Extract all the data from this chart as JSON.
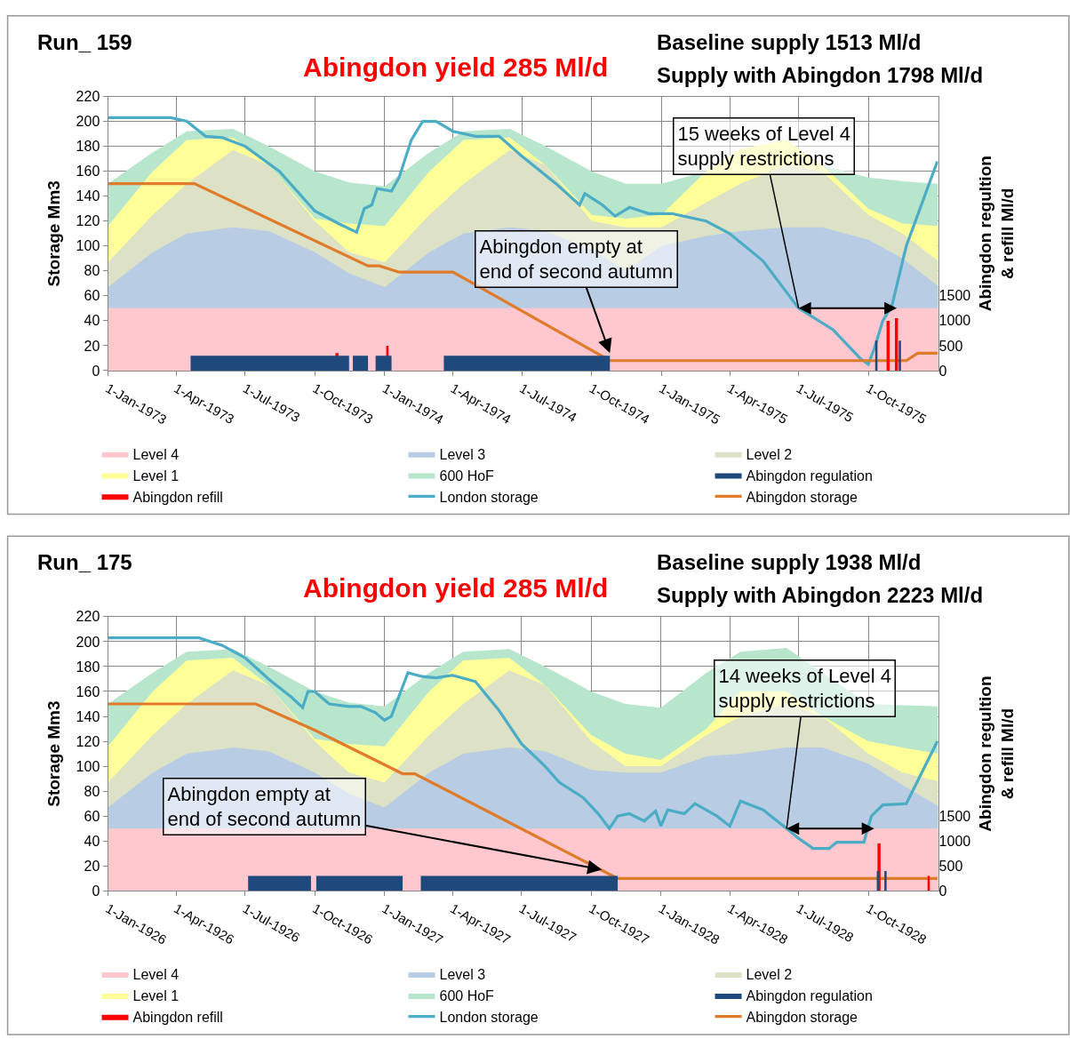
{
  "chart_data": [
    {
      "type": "area",
      "title": "Run_ 159",
      "subtitle": "Abingdon yield 285 Ml/d",
      "annotations": [
        "Baseline supply 1513 Ml/d",
        "Supply with Abingdon 1798 Ml/d",
        {
          "text": "15 weeks of Level 4\nsupply restrictions",
          "x": "1975-07-01",
          "y": 50
        },
        {
          "text": "Abingdon empty at\nend of second autumn",
          "x": "1974-10-25",
          "y": 14
        }
      ],
      "ylabel": "Storage Mm3",
      "y2label": "Abingdon regultion\n& refill Ml/d",
      "xlim": [
        "1973-01-01",
        "1976-01-01"
      ],
      "xticks": [
        {
          "value": "1973-01-01",
          "label": "1-Jan-1973"
        },
        {
          "value": "1973-04-01",
          "label": "1-Apr-1973"
        },
        {
          "value": "1973-07-01",
          "label": "1-Jul-1973"
        },
        {
          "value": "1973-10-01",
          "label": "1-Oct-1973"
        },
        {
          "value": "1974-01-01",
          "label": "1-Jan-1974"
        },
        {
          "value": "1974-04-01",
          "label": "1-Apr-1974"
        },
        {
          "value": "1974-07-01",
          "label": "1-Jul-1974"
        },
        {
          "value": "1974-10-01",
          "label": "1-Oct-1974"
        },
        {
          "value": "1975-01-01",
          "label": "1-Jan-1975"
        },
        {
          "value": "1975-04-01",
          "label": "1-Apr-1975"
        },
        {
          "value": "1975-07-01",
          "label": "1-Jul-1975"
        },
        {
          "value": "1975-10-01",
          "label": "1-Oct-1975"
        }
      ],
      "ylim": [
        0,
        220
      ],
      "yticks": [
        0,
        20,
        40,
        60,
        80,
        100,
        120,
        140,
        160,
        180,
        200,
        220
      ],
      "y2lim": [
        0,
        5500
      ],
      "y2ticks": [
        0,
        500,
        1000,
        1500
      ],
      "grid": true,
      "legend": "bottom",
      "series": [
        {
          "name": "Level 4",
          "color": "#ffc7ce",
          "x": [
            "1973-01-01",
            "1976-01-01"
          ],
          "values": [
            50,
            50
          ]
        },
        {
          "name": "Level 3",
          "color": "#b8cce4",
          "x": [
            "1973-01-01",
            "1973-03-01",
            "1973-04-15",
            "1973-06-15",
            "1973-08-01",
            "1973-10-01",
            "1973-11-15",
            "1974-01-01",
            "1974-03-01",
            "1974-04-15",
            "1974-06-15",
            "1974-08-01",
            "1974-10-01",
            "1974-11-15",
            "1975-01-01",
            "1975-03-01",
            "1975-04-15",
            "1975-06-15",
            "1975-08-01",
            "1975-10-01",
            "1975-11-15",
            "1976-01-01"
          ],
          "values": [
            67,
            95,
            110,
            115,
            112,
            95,
            78,
            67,
            95,
            110,
            115,
            112,
            97,
            80,
            100,
            108,
            112,
            115,
            115,
            105,
            90,
            68
          ]
        },
        {
          "name": "Level 2",
          "color": "#dde2c6",
          "x": [
            "1973-01-01",
            "1973-03-01",
            "1973-04-15",
            "1973-06-15",
            "1973-08-01",
            "1973-10-01",
            "1973-11-15",
            "1974-01-01",
            "1974-03-01",
            "1974-04-15",
            "1974-06-15",
            "1974-08-01",
            "1974-10-01",
            "1974-11-15",
            "1975-01-01",
            "1975-03-01",
            "1975-04-15",
            "1975-06-15",
            "1975-08-01",
            "1975-10-01",
            "1975-11-15",
            "1976-01-01"
          ],
          "values": [
            87,
            125,
            150,
            177,
            165,
            120,
            95,
            87,
            125,
            150,
            177,
            165,
            120,
            115,
            115,
            135,
            150,
            165,
            160,
            125,
            110,
            88
          ]
        },
        {
          "name": "Level 1",
          "color": "#ffff99",
          "x": [
            "1973-01-01",
            "1973-03-01",
            "1973-04-15",
            "1973-06-15",
            "1973-08-01",
            "1973-10-01",
            "1973-11-15",
            "1974-01-01",
            "1974-03-01",
            "1974-04-15",
            "1974-06-15",
            "1974-08-01",
            "1974-10-01",
            "1974-11-15",
            "1975-01-01",
            "1975-03-01",
            "1975-04-15",
            "1975-06-15",
            "1975-08-01",
            "1975-10-01",
            "1975-11-15",
            "1976-01-01"
          ],
          "values": [
            116,
            160,
            185,
            187,
            165,
            122,
            118,
            116,
            160,
            185,
            187,
            165,
            125,
            122,
            125,
            160,
            178,
            185,
            165,
            130,
            118,
            116
          ]
        },
        {
          "name": "600 HoF",
          "color": "#b7e6cc",
          "x": [
            "1973-01-01",
            "1973-03-01",
            "1973-04-15",
            "1973-06-15",
            "1973-08-01",
            "1973-10-01",
            "1973-11-15",
            "1974-01-01",
            "1974-03-01",
            "1974-04-15",
            "1974-06-15",
            "1974-08-01",
            "1974-10-01",
            "1974-11-15",
            "1975-01-01",
            "1975-03-01",
            "1975-04-15",
            "1975-06-15",
            "1975-08-01",
            "1975-10-01",
            "1975-11-15",
            "1976-01-01"
          ],
          "values": [
            150,
            175,
            192,
            194,
            180,
            160,
            151,
            148,
            175,
            192,
            194,
            180,
            160,
            150,
            150,
            160,
            null,
            null,
            165,
            155,
            152,
            150
          ]
        },
        {
          "name": "Abingdon regulation",
          "axis": "y2",
          "color": "#1f497d",
          "x": [
            "1973-01-01",
            "1973-04-20",
            "1973-11-15",
            "1973-11-20",
            "1973-12-10",
            "1973-12-20",
            "1974-01-10",
            "1974-03-20",
            "1974-10-25",
            "1975-10-10",
            "1975-10-13",
            "1975-11-10",
            "1975-11-13",
            "1975-12-31"
          ],
          "values": [
            0,
            300,
            0,
            300,
            0,
            300,
            0,
            300,
            0,
            600,
            0,
            600,
            0,
            0
          ]
        },
        {
          "name": "Abingdon refill",
          "axis": "y2",
          "color": "#ff0000",
          "x": [
            "1973-01-01",
            "1973-10-28",
            "1973-11-01",
            "1974-01-03",
            "1974-01-06",
            "1975-10-25",
            "1975-10-29",
            "1975-11-05",
            "1975-11-09",
            "1975-12-31"
          ],
          "values": [
            0,
            350,
            0,
            500,
            0,
            1000,
            0,
            1050,
            0,
            0
          ]
        },
        {
          "name": "London storage",
          "type": "line",
          "color": "#4bacc6",
          "x": [
            "1973-01-01",
            "1973-03-25",
            "1973-04-15",
            "1973-05-10",
            "1973-06-01",
            "1973-07-01",
            "1973-08-15",
            "1973-10-01",
            "1973-11-01",
            "1973-11-25",
            "1973-12-05",
            "1973-12-15",
            "1973-12-22",
            "1974-01-10",
            "1974-01-20",
            "1974-02-05",
            "1974-02-20",
            "1974-03-10",
            "1974-04-01",
            "1974-05-01",
            "1974-06-01",
            "1974-07-01",
            "1974-08-15",
            "1974-09-15",
            "1974-09-22",
            "1974-10-15",
            "1974-11-01",
            "1974-11-20",
            "1974-12-15",
            "1975-01-15",
            "1975-03-01",
            "1975-04-01",
            "1975-05-15",
            "1975-07-01",
            "1975-08-15",
            "1975-09-20",
            "1975-10-01",
            "1975-10-10",
            "1975-10-20",
            "1975-10-30",
            "1975-11-01",
            "1975-11-20",
            "1975-12-31"
          ],
          "values": [
            203,
            203,
            200,
            188,
            187,
            180,
            160,
            128,
            118,
            111,
            130,
            133,
            146,
            144,
            155,
            185,
            200,
            200,
            192,
            188,
            188,
            172,
            150,
            133,
            142,
            133,
            124,
            131,
            126,
            126,
            120,
            110,
            88,
            50,
            33,
            10,
            5,
            20,
            40,
            50,
            52,
            100,
            168
          ]
        },
        {
          "name": "Abingdon storage",
          "type": "line",
          "color": "#e07b2a",
          "x": [
            "1973-01-01",
            "1973-04-25",
            "1973-12-10",
            "1973-12-25",
            "1974-01-20",
            "1974-04-01",
            "1974-10-25",
            "1975-11-20",
            "1975-12-05",
            "1975-12-31"
          ],
          "values": [
            150,
            150,
            84,
            84,
            79,
            79,
            8,
            8,
            14,
            14
          ]
        }
      ]
    },
    {
      "type": "area",
      "title": "Run_ 175",
      "subtitle": "Abingdon yield 285 Ml/d",
      "annotations": [
        "Baseline supply 1938 Ml/d",
        "Supply with Abingdon 2223 Ml/d",
        {
          "text": "14 weeks of Level 4\nsupply restrictions",
          "x": "1928-06-15",
          "y": 50
        },
        {
          "text": "Abingdon empty at\nend of second autumn",
          "x": "1927-10-15",
          "y": 17
        }
      ],
      "ylabel": "Storage Mm3",
      "y2label": "Abingdon regultion\n& refill Ml/d",
      "xlim": [
        "1926-01-01",
        "1929-01-01"
      ],
      "xticks": [
        {
          "value": "1926-01-01",
          "label": "1-Jan-1926"
        },
        {
          "value": "1926-04-01",
          "label": "1-Apr-1926"
        },
        {
          "value": "1926-07-01",
          "label": "1-Jul-1926"
        },
        {
          "value": "1926-10-01",
          "label": "1-Oct-1926"
        },
        {
          "value": "1927-01-01",
          "label": "1-Jan-1927"
        },
        {
          "value": "1927-04-01",
          "label": "1-Apr-1927"
        },
        {
          "value": "1927-07-01",
          "label": "1-Jul-1927"
        },
        {
          "value": "1927-10-01",
          "label": "1-Oct-1927"
        },
        {
          "value": "1928-01-01",
          "label": "1-Jan-1928"
        },
        {
          "value": "1928-04-01",
          "label": "1-Apr-1928"
        },
        {
          "value": "1928-07-01",
          "label": "1-Jul-1928"
        },
        {
          "value": "1928-10-01",
          "label": "1-Oct-1928"
        }
      ],
      "ylim": [
        0,
        220
      ],
      "yticks": [
        0,
        20,
        40,
        60,
        80,
        100,
        120,
        140,
        160,
        180,
        200,
        220
      ],
      "y2lim": [
        0,
        5500
      ],
      "y2ticks": [
        0,
        500,
        1000,
        1500
      ],
      "grid": true,
      "legend": "bottom",
      "series": [
        {
          "name": "Level 4",
          "color": "#ffc7ce",
          "x": [
            "1926-01-01",
            "1929-01-01"
          ],
          "values": [
            50,
            50
          ]
        },
        {
          "name": "Level 3",
          "color": "#b8cce4",
          "x": [
            "1926-01-01",
            "1926-03-01",
            "1926-04-15",
            "1926-06-15",
            "1926-08-01",
            "1926-10-01",
            "1926-11-15",
            "1927-01-01",
            "1927-03-01",
            "1927-04-15",
            "1927-06-15",
            "1927-08-01",
            "1927-10-01",
            "1927-11-15",
            "1928-01-01",
            "1928-03-01",
            "1928-04-15",
            "1928-06-15",
            "1928-08-01",
            "1928-10-01",
            "1928-11-15",
            "1929-01-01"
          ],
          "values": [
            67,
            95,
            110,
            115,
            112,
            95,
            78,
            67,
            95,
            110,
            115,
            112,
            97,
            95,
            95,
            108,
            110,
            115,
            115,
            102,
            85,
            68
          ]
        },
        {
          "name": "Level 2",
          "color": "#dde2c6",
          "x": [
            "1926-01-01",
            "1926-03-01",
            "1926-04-15",
            "1926-06-15",
            "1926-08-01",
            "1926-10-01",
            "1926-11-15",
            "1927-01-01",
            "1927-03-01",
            "1927-04-15",
            "1927-06-15",
            "1927-08-01",
            "1927-10-01",
            "1927-11-15",
            "1928-01-01",
            "1928-03-01",
            "1928-04-15",
            "1928-06-15",
            "1928-08-01",
            "1928-10-01",
            "1928-11-15",
            "1929-01-01"
          ],
          "values": [
            87,
            125,
            150,
            177,
            165,
            120,
            95,
            87,
            125,
            150,
            177,
            165,
            120,
            100,
            100,
            125,
            140,
            150,
            140,
            110,
            95,
            88
          ]
        },
        {
          "name": "Level 1",
          "color": "#ffff99",
          "x": [
            "1926-01-01",
            "1926-03-01",
            "1926-04-15",
            "1926-06-15",
            "1926-08-01",
            "1926-10-01",
            "1926-11-15",
            "1927-01-01",
            "1927-03-01",
            "1927-04-15",
            "1927-06-15",
            "1927-08-01",
            "1927-10-01",
            "1927-11-15",
            "1928-01-01",
            "1928-03-01",
            "1928-04-15",
            "1928-06-15",
            "1928-08-01",
            "1928-10-01",
            "1928-11-15",
            "1929-01-01"
          ],
          "values": [
            116,
            160,
            185,
            187,
            165,
            122,
            118,
            116,
            160,
            185,
            187,
            165,
            125,
            110,
            105,
            130,
            160,
            160,
            140,
            120,
            115,
            110
          ]
        },
        {
          "name": "600 HoF",
          "color": "#b7e6cc",
          "x": [
            "1926-01-01",
            "1926-03-01",
            "1926-04-15",
            "1926-06-15",
            "1926-08-01",
            "1926-10-01",
            "1926-11-15",
            "1927-01-01",
            "1927-03-01",
            "1927-04-15",
            "1927-06-15",
            "1927-08-01",
            "1927-10-01",
            "1927-11-15",
            "1928-01-01",
            "1928-03-01",
            "1928-04-15",
            "1928-06-15",
            "1928-08-01",
            "1928-10-01",
            "1928-11-15",
            "1929-01-01"
          ],
          "values": [
            150,
            175,
            192,
            194,
            180,
            160,
            151,
            148,
            175,
            192,
            194,
            180,
            160,
            150,
            147,
            175,
            192,
            195,
            175,
            150,
            149,
            148
          ]
        },
        {
          "name": "Abingdon regulation",
          "axis": "y2",
          "color": "#1f497d",
          "x": [
            "1926-01-01",
            "1926-07-05",
            "1926-09-26",
            "1926-10-03",
            "1927-01-25",
            "1927-02-18",
            "1927-11-05",
            "1928-10-12",
            "1928-10-15",
            "1928-10-22",
            "1928-10-25",
            "1928-12-31"
          ],
          "values": [
            0,
            300,
            0,
            300,
            0,
            300,
            0,
            400,
            0,
            400,
            0,
            0
          ]
        },
        {
          "name": "Abingdon refill",
          "axis": "y2",
          "color": "#ff0000",
          "x": [
            "1926-01-01",
            "1928-10-13",
            "1928-10-17",
            "1928-12-18",
            "1928-12-21",
            "1928-12-31"
          ],
          "values": [
            0,
            950,
            0,
            300,
            0,
            0
          ]
        },
        {
          "name": "London storage",
          "type": "line",
          "color": "#4bacc6",
          "x": [
            "1926-01-01",
            "1926-05-01",
            "1926-06-01",
            "1926-07-01",
            "1926-08-01",
            "1926-09-01",
            "1926-09-15",
            "1926-09-22",
            "1926-10-01",
            "1926-10-20",
            "1926-11-15",
            "1926-12-01",
            "1926-12-20",
            "1927-01-01",
            "1927-01-10",
            "1927-02-01",
            "1927-02-20",
            "1927-03-10",
            "1927-04-01",
            "1927-05-01",
            "1927-06-01",
            "1927-07-01",
            "1927-08-01",
            "1927-08-20",
            "1927-09-20",
            "1927-10-10",
            "1927-10-25",
            "1927-11-05",
            "1927-11-20",
            "1927-12-10",
            "1927-12-25",
            "1928-01-01",
            "1928-01-10",
            "1928-02-01",
            "1928-02-15",
            "1928-03-15",
            "1928-04-01",
            "1928-04-15",
            "1928-05-15",
            "1928-06-15",
            "1928-07-01",
            "1928-07-20",
            "1928-08-10",
            "1928-08-20",
            "1928-09-25",
            "1928-09-30",
            "1928-10-05",
            "1928-10-20",
            "1928-11-20",
            "1928-12-31"
          ],
          "values": [
            203,
            203,
            197,
            187,
            170,
            155,
            147,
            160,
            160,
            150,
            148,
            148,
            143,
            137,
            140,
            175,
            172,
            171,
            173,
            168,
            145,
            118,
            100,
            87,
            75,
            62,
            50,
            60,
            62,
            56,
            64,
            52,
            65,
            62,
            70,
            60,
            52,
            72,
            65,
            50,
            42,
            34,
            34,
            39,
            39,
            50,
            60,
            69,
            70,
            120
          ]
        },
        {
          "name": "Abingdon storage",
          "type": "line",
          "color": "#e07b2a",
          "x": [
            "1926-01-01",
            "1926-07-15",
            "1926-10-01",
            "1927-01-25",
            "1927-02-10",
            "1927-11-05",
            "1928-12-31"
          ],
          "values": [
            150,
            150,
            129,
            94,
            94,
            10,
            10
          ]
        }
      ]
    }
  ]
}
